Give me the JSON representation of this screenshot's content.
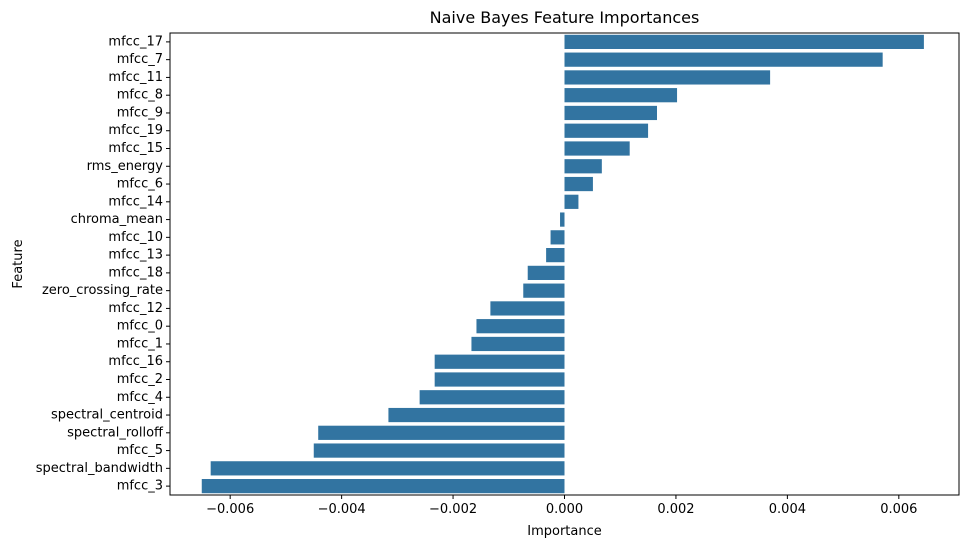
{
  "chart_data": {
    "type": "bar",
    "orientation": "horizontal",
    "title": "Naive Bayes Feature Importances",
    "xlabel": "Importance",
    "ylabel": "Feature",
    "xlim": [
      -0.00708,
      0.00708
    ],
    "xticks": [
      {
        "value": -0.006,
        "label": "−0.006"
      },
      {
        "value": -0.004,
        "label": "−0.004"
      },
      {
        "value": -0.002,
        "label": "−0.002"
      },
      {
        "value": 0,
        "label": "0.000"
      },
      {
        "value": 0.002,
        "label": "0.002"
      },
      {
        "value": 0.004,
        "label": "0.004"
      },
      {
        "value": 0.006,
        "label": "0.006"
      }
    ],
    "grid": false,
    "bar_color": "#3274a1",
    "categories": [
      "mfcc_17",
      "mfcc_7",
      "mfcc_11",
      "mfcc_8",
      "mfcc_9",
      "mfcc_19",
      "mfcc_15",
      "rms_energy",
      "mfcc_6",
      "mfcc_14",
      "chroma_mean",
      "mfcc_10",
      "mfcc_13",
      "mfcc_18",
      "zero_crossing_rate",
      "mfcc_12",
      "mfcc_0",
      "mfcc_1",
      "mfcc_16",
      "mfcc_2",
      "mfcc_4",
      "spectral_centroid",
      "spectral_rolloff",
      "mfcc_5",
      "spectral_bandwidth",
      "mfcc_3"
    ],
    "values": [
      0.00645,
      0.00571,
      0.00369,
      0.00202,
      0.00166,
      0.0015,
      0.00117,
      0.00067,
      0.00051,
      0.00025,
      -8e-05,
      -0.00025,
      -0.00033,
      -0.00066,
      -0.00074,
      -0.00133,
      -0.00158,
      -0.00167,
      -0.00233,
      -0.00233,
      -0.0026,
      -0.00316,
      -0.00442,
      -0.0045,
      -0.00635,
      -0.00651
    ]
  }
}
